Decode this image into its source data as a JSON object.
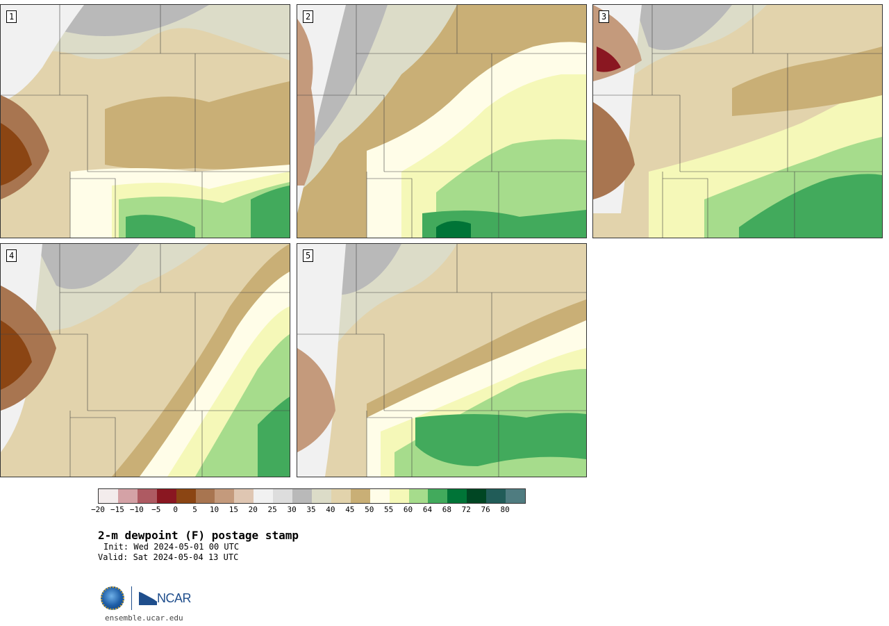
{
  "panels": [
    {
      "label": "1"
    },
    {
      "label": "2"
    },
    {
      "label": "3"
    },
    {
      "label": "4"
    },
    {
      "label": "5"
    }
  ],
  "colorbar": {
    "colors": [
      "#f3ecec",
      "#d4a2a6",
      "#ae5a62",
      "#8a1721",
      "#8b4513",
      "#a87550",
      "#c49a7c",
      "#dfc6b2",
      "#f1f1f1",
      "#dddddd",
      "#b9b9b9",
      "#dcdcc8",
      "#e2d3ac",
      "#c9af76",
      "#fffde8",
      "#f5f8b8",
      "#a6dc8c",
      "#42aa5c",
      "#007437",
      "#004623",
      "#215c58",
      "#4f7c80"
    ],
    "ticks": [
      "−20",
      "−15",
      "−10",
      "−5",
      "0",
      "5",
      "10",
      "15",
      "20",
      "25",
      "30",
      "35",
      "40",
      "45",
      "50",
      "55",
      "60",
      "64",
      "68",
      "72",
      "76",
      "80"
    ]
  },
  "title": "2-m dewpoint (F) postage stamp",
  "init": "Init: Wed 2024-05-01 00 UTC",
  "valid": "Valid: Sat 2024-05-04 13 UTC",
  "logos": {
    "nsf": "nsf-logo",
    "ncar_text": "NCAR"
  },
  "url": "ensemble.ucar.edu"
}
